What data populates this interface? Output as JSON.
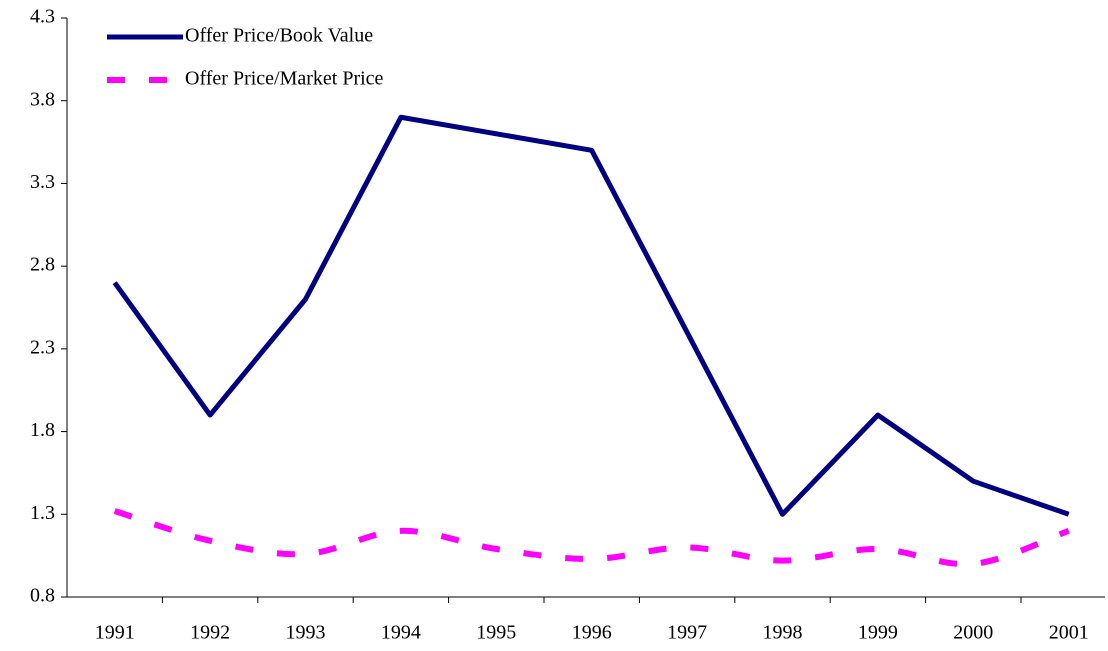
{
  "chart_data": {
    "type": "line",
    "categories": [
      "1991",
      "1992",
      "1993",
      "1994",
      "1995",
      "1996",
      "1997",
      "1998",
      "1999",
      "2000",
      "2001"
    ],
    "series": [
      {
        "name": "Offer Price/Book Value",
        "color": "#000080",
        "dash": false,
        "smooth": false,
        "values": [
          2.7,
          1.9,
          2.6,
          3.7,
          3.6,
          3.5,
          2.4,
          1.3,
          1.9,
          1.5,
          1.3
        ]
      },
      {
        "name": "Offer Price/Market Price",
        "color": "#ff00ff",
        "dash": true,
        "smooth": true,
        "values": [
          1.32,
          1.14,
          1.06,
          1.2,
          1.09,
          1.03,
          1.1,
          1.02,
          1.09,
          1.0,
          1.2
        ]
      }
    ],
    "ylim": [
      0.8,
      4.3
    ],
    "yticks": [
      0.8,
      1.3,
      1.8,
      2.3,
      2.8,
      3.3,
      3.8,
      4.3
    ],
    "grid": false,
    "legend": "top-left"
  }
}
